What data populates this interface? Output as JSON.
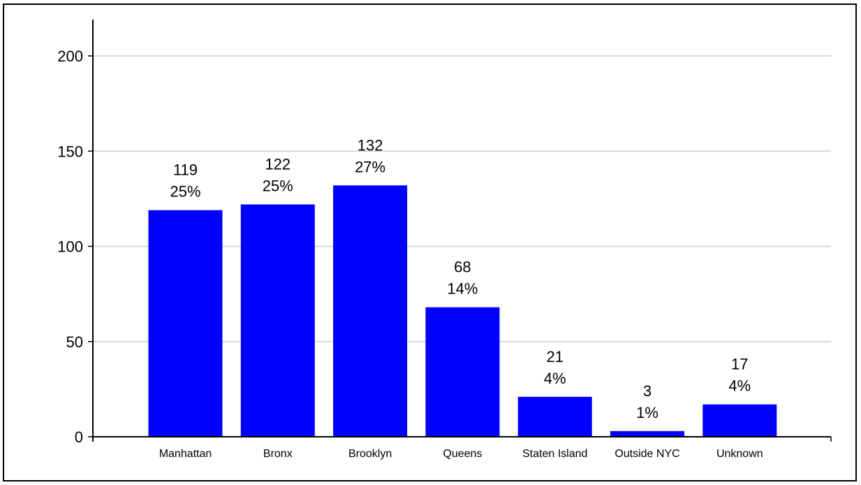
{
  "chart_data": {
    "type": "bar",
    "title": "",
    "xlabel": "",
    "ylabel": "",
    "categories": [
      "Manhattan",
      "Bronx",
      "Brooklyn",
      "Queens",
      "Staten Island",
      "Outside NYC",
      "Unknown"
    ],
    "values": [
      119,
      122,
      132,
      68,
      21,
      3,
      17
    ],
    "percent_labels": [
      "25%",
      "25%",
      "27%",
      "14%",
      "4%",
      "1%",
      "4%"
    ],
    "ylim": [
      0,
      220
    ],
    "yticks": [
      0,
      50,
      100,
      150,
      200
    ],
    "grid": "horizontal",
    "bar_color": "#0000ff",
    "grid_color": "#d9d9d9"
  }
}
